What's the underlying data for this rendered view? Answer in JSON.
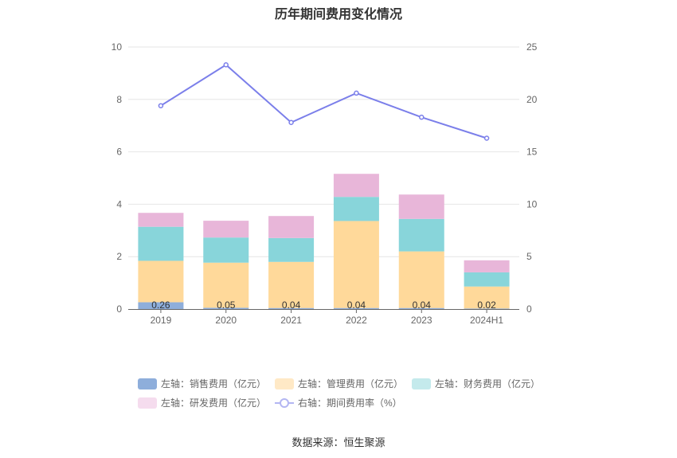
{
  "chart_data": {
    "type": "bar",
    "title": "历年期间费用变化情况",
    "categories": [
      "2019",
      "2020",
      "2021",
      "2022",
      "2023",
      "2024H1"
    ],
    "stacked": true,
    "left_axis": {
      "ylim": [
        0,
        10
      ],
      "ticks": [
        "0",
        "2",
        "4",
        "6",
        "8",
        "10"
      ]
    },
    "right_axis": {
      "ylim": [
        0,
        25
      ],
      "ticks": [
        "0",
        "5",
        "10",
        "15",
        "20",
        "25"
      ]
    },
    "series": [
      {
        "name": "左轴：销售费用（亿元）",
        "axis": "left",
        "type": "bar",
        "color": "#8eaedb",
        "values": [
          0.26,
          0.05,
          0.04,
          0.04,
          0.04,
          0.02
        ],
        "labels": [
          "0.26",
          "0.05",
          "0.04",
          "0.04",
          "0.04",
          "0.02"
        ]
      },
      {
        "name": "左轴：管理费用（亿元）",
        "axis": "left",
        "type": "bar",
        "color": "#ffd99a",
        "values": [
          1.58,
          1.72,
          1.76,
          3.32,
          2.16,
          0.84
        ]
      },
      {
        "name": "左轴：财务费用（亿元）",
        "axis": "left",
        "type": "bar",
        "color": "#88d5da",
        "values": [
          1.3,
          0.96,
          0.91,
          0.92,
          1.24,
          0.54
        ]
      },
      {
        "name": "左轴：研发费用（亿元）",
        "axis": "left",
        "type": "bar",
        "color": "#e8b6d9",
        "values": [
          0.53,
          0.64,
          0.84,
          0.88,
          0.93,
          0.46
        ]
      },
      {
        "name": "右轴：期间费用率（%）",
        "axis": "right",
        "type": "line",
        "color": "#7b7fea",
        "values": [
          19.4,
          23.3,
          17.8,
          20.6,
          18.3,
          16.3
        ]
      }
    ],
    "legend_position": "bottom",
    "grid": true
  },
  "source": "数据来源：恒生聚源"
}
